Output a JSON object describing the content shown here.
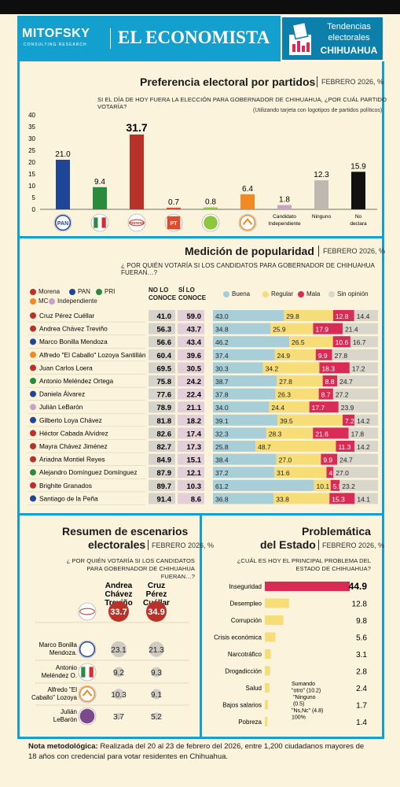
{
  "header": {
    "mitofsky": "MITOFSKY",
    "mitofsky_sub": "CONSULTING RESEARCH",
    "economista": "EL ECONOMISTA",
    "badge_line1": "Tendencias",
    "badge_line2": "electorales",
    "badge_line3": "CHIHUAHUA"
  },
  "colors": {
    "header_bg": "#14a0cf",
    "pan": "#1e4596",
    "pri": "#2b8a3e",
    "morena": "#b8322a",
    "pt": "#e04a2f",
    "pv": "#8dc63f",
    "mc": "#f08a24",
    "independiente": "#c8a2c8",
    "buena": "#a8cfd8",
    "regular": "#f7dd78",
    "mala": "#d82b55",
    "sin_opinion": "#d9d6cc"
  },
  "chart_data": [
    {
      "type": "bar",
      "title": "Preferencia electoral por partidos",
      "date": "FEBRERO 2026, %",
      "question": "SI EL DÍA DE HOY FUERA LA ELECCIÓN PARA GOBERNADOR DE CHIHUAHUA, ¿POR CUÁL PARTIDO VOTARÍA?",
      "subtitle": "(Utilizando tarjeta con logotipos de partidos políticos)",
      "categories": [
        "PAN",
        "PRI",
        "morena",
        "PT",
        "PV",
        "MC",
        "Candidato Independiente",
        "Ninguno",
        "No declara"
      ],
      "values": [
        21.0,
        9.4,
        31.7,
        0.7,
        0.8,
        6.4,
        1.8,
        12.3,
        15.9
      ],
      "value_labels": [
        "21.0",
        "9.4",
        "31.7",
        "0.7",
        "0.8",
        "6.4",
        "1.8",
        "12.3",
        "15.9"
      ],
      "bar_colors": [
        "#1e4596",
        "#2b8a3e",
        "#b8322a",
        "#e04a2f",
        "#8dc63f",
        "#f08a24",
        "#c8a2c8",
        "#bdb9b0",
        "#111111"
      ],
      "yticks": [
        "0",
        "5",
        "10",
        "15",
        "20",
        "25",
        "30",
        "35",
        "40"
      ],
      "ylim": [
        0,
        40
      ]
    },
    {
      "type": "table",
      "title": "Medición de popularidad",
      "date": "FEBRERO 2026, %",
      "question": "¿ POR QUIÉN VOTARÍA SI LOS CANDIDATOS PARA GOBERNADOR DE CHIHUAHUA FUERAN…?",
      "legend_parties": [
        "Morena",
        "PAN",
        "PRI",
        "MC",
        "Independiente"
      ],
      "col_no": "NO LO CONOCE",
      "col_si": "SÍ LO CONOCE",
      "legend_opinion": [
        "Buena",
        "Regular",
        "Mala",
        "Sin opinión"
      ],
      "rows": [
        {
          "name": "Cruz Pérez Cuéllar",
          "party": "morena",
          "no": "41.0",
          "si": "59.0",
          "opinion": [
            43.0,
            29.8,
            12.8,
            14.4
          ]
        },
        {
          "name": "Andrea Chávez Treviño",
          "party": "morena",
          "no": "56.3",
          "si": "43.7",
          "opinion": [
            34.8,
            25.9,
            17.9,
            21.4
          ]
        },
        {
          "name": "Marco Bonilla Mendoza",
          "party": "pan",
          "no": "56.6",
          "si": "43.4",
          "opinion": [
            46.2,
            26.5,
            10.6,
            16.7
          ]
        },
        {
          "name": "Alfredo \"El Caballo\" Lozoya Santillán",
          "party": "mc",
          "no": "60.4",
          "si": "39.6",
          "opinion": [
            37.4,
            24.9,
            9.9,
            27.8
          ]
        },
        {
          "name": "Juan Carlos Loera",
          "party": "morena",
          "no": "69.5",
          "si": "30.5",
          "opinion": [
            30.3,
            34.2,
            18.3,
            17.2
          ]
        },
        {
          "name": "Antonio Meléndez Ortega",
          "party": "pri",
          "no": "75.8",
          "si": "24.2",
          "opinion": [
            38.7,
            27.8,
            8.8,
            24.7
          ]
        },
        {
          "name": "Daniela Álvarez",
          "party": "pan",
          "no": "77.6",
          "si": "22.4",
          "opinion": [
            37.8,
            26.3,
            8.7,
            27.2
          ]
        },
        {
          "name": "Julián LeBarón",
          "party": "independiente",
          "no": "78.9",
          "si": "21.1",
          "opinion": [
            34.0,
            24.4,
            17.7,
            23.9
          ]
        },
        {
          "name": "Gilberto Loya Chávez",
          "party": "pan",
          "no": "81.8",
          "si": "18.2",
          "opinion": [
            39.1,
            39.5,
            7.2,
            14.2
          ]
        },
        {
          "name": "Héctor Cabada Alvídrez",
          "party": "morena",
          "no": "82.6",
          "si": "17.4",
          "opinion": [
            32.3,
            28.3,
            21.6,
            17.8
          ]
        },
        {
          "name": "Mayra Chávez Jiménez",
          "party": "morena",
          "no": "82.7",
          "si": "17.3",
          "opinion": [
            25.8,
            48.7,
            11.3,
            14.2
          ]
        },
        {
          "name": "Ariadna Montiel Reyes",
          "party": "morena",
          "no": "84.9",
          "si": "15.1",
          "opinion": [
            38.4,
            27.0,
            9.9,
            24.7
          ]
        },
        {
          "name": "Alejandro Domínguez Domínguez",
          "party": "pri",
          "no": "87.9",
          "si": "12.1",
          "opinion": [
            37.2,
            31.6,
            4.2,
            27.0
          ]
        },
        {
          "name": "Brighite Granados",
          "party": "morena",
          "no": "89.7",
          "si": "10.3",
          "opinion": [
            61.2,
            10.1,
            5.5,
            23.2
          ]
        },
        {
          "name": "Santiago de la Peña",
          "party": "pan",
          "no": "91.4",
          "si": "8.6",
          "opinion": [
            36.8,
            33.8,
            15.3,
            14.1
          ]
        }
      ]
    },
    {
      "type": "table",
      "title_line1": "Resumen de escenarios",
      "title_line2": "electorales",
      "date": "FEBRERO 2026, %",
      "question": "¿ POR QUIÉN VOTARÍA SI LOS CANDIDATOS PARA GOBERNADOR DE CHIHUAHUA FUERAN…?",
      "columns": [
        "Andrea Chávez Treviño",
        "Cruz Pérez Cuéllar"
      ],
      "col1_lines": [
        "Andrea",
        "Chávez",
        "Treviño"
      ],
      "col2_lines": [
        "Cruz",
        "Pérez",
        "Cuéllar"
      ],
      "rows": [
        {
          "label": "",
          "party": "morena",
          "values": [
            "33.7",
            "34.9"
          ]
        },
        {
          "label": "Marco Bonilla Mendoza.",
          "label_lines": [
            "Marco Bonilla",
            "Mendoza."
          ],
          "party": "pan",
          "values": [
            "23.1",
            "21.3"
          ]
        },
        {
          "label": "Antonio Meléndez O.",
          "label_lines": [
            "Antonio",
            "Meléndez O."
          ],
          "party": "pri",
          "values": [
            "9.2",
            "9.3"
          ]
        },
        {
          "label": "Alfredo \"El Caballo\" Lozoya",
          "label_lines": [
            "Alfredo \"El",
            "Caballo\" Lozoya"
          ],
          "party": "mc",
          "values": [
            "10.3",
            "9.1"
          ]
        },
        {
          "label": "Julián LeBarón",
          "label_lines": [
            "Julián",
            "LeBarón"
          ],
          "party": "independiente",
          "values": [
            "3.7",
            "5.2"
          ]
        }
      ]
    },
    {
      "type": "bar",
      "title_line1": "Problemática",
      "title_line2": "del Estado",
      "date": "FEBRERO 2026, %",
      "question": "¿CUÁL ES HOY EL PRINCIPAL PROBLEMA DEL ESTADO DE CHIHUAHUA?",
      "categories": [
        "Inseguridad",
        "Desempleo",
        "Corrupción",
        "Crisis económica",
        "Narcotráfico",
        "Drogadicción",
        "Salud",
        "Bajos salarios",
        "Pobreza"
      ],
      "values": [
        44.9,
        12.8,
        9.8,
        5.6,
        3.1,
        2.8,
        2.4,
        1.7,
        1.4
      ],
      "value_labels": [
        "44.9",
        "12.8",
        "9.8",
        "5.6",
        "3.1",
        "2.8",
        "2.4",
        "1.7",
        "1.4"
      ],
      "annotation": "Sumando \"otro\" (10.2), \"Ninguno\" (0.5) y \"Ns,Nc\" (4.8) = 100%"
    }
  ],
  "note": {
    "label": "Nota metodológica:",
    "text": "Realizada del 20 al 23 de febrero del 2026, entre 1,200 ciudadanos mayores de 18 años con credencial para votar residentes en Chihuahua."
  }
}
